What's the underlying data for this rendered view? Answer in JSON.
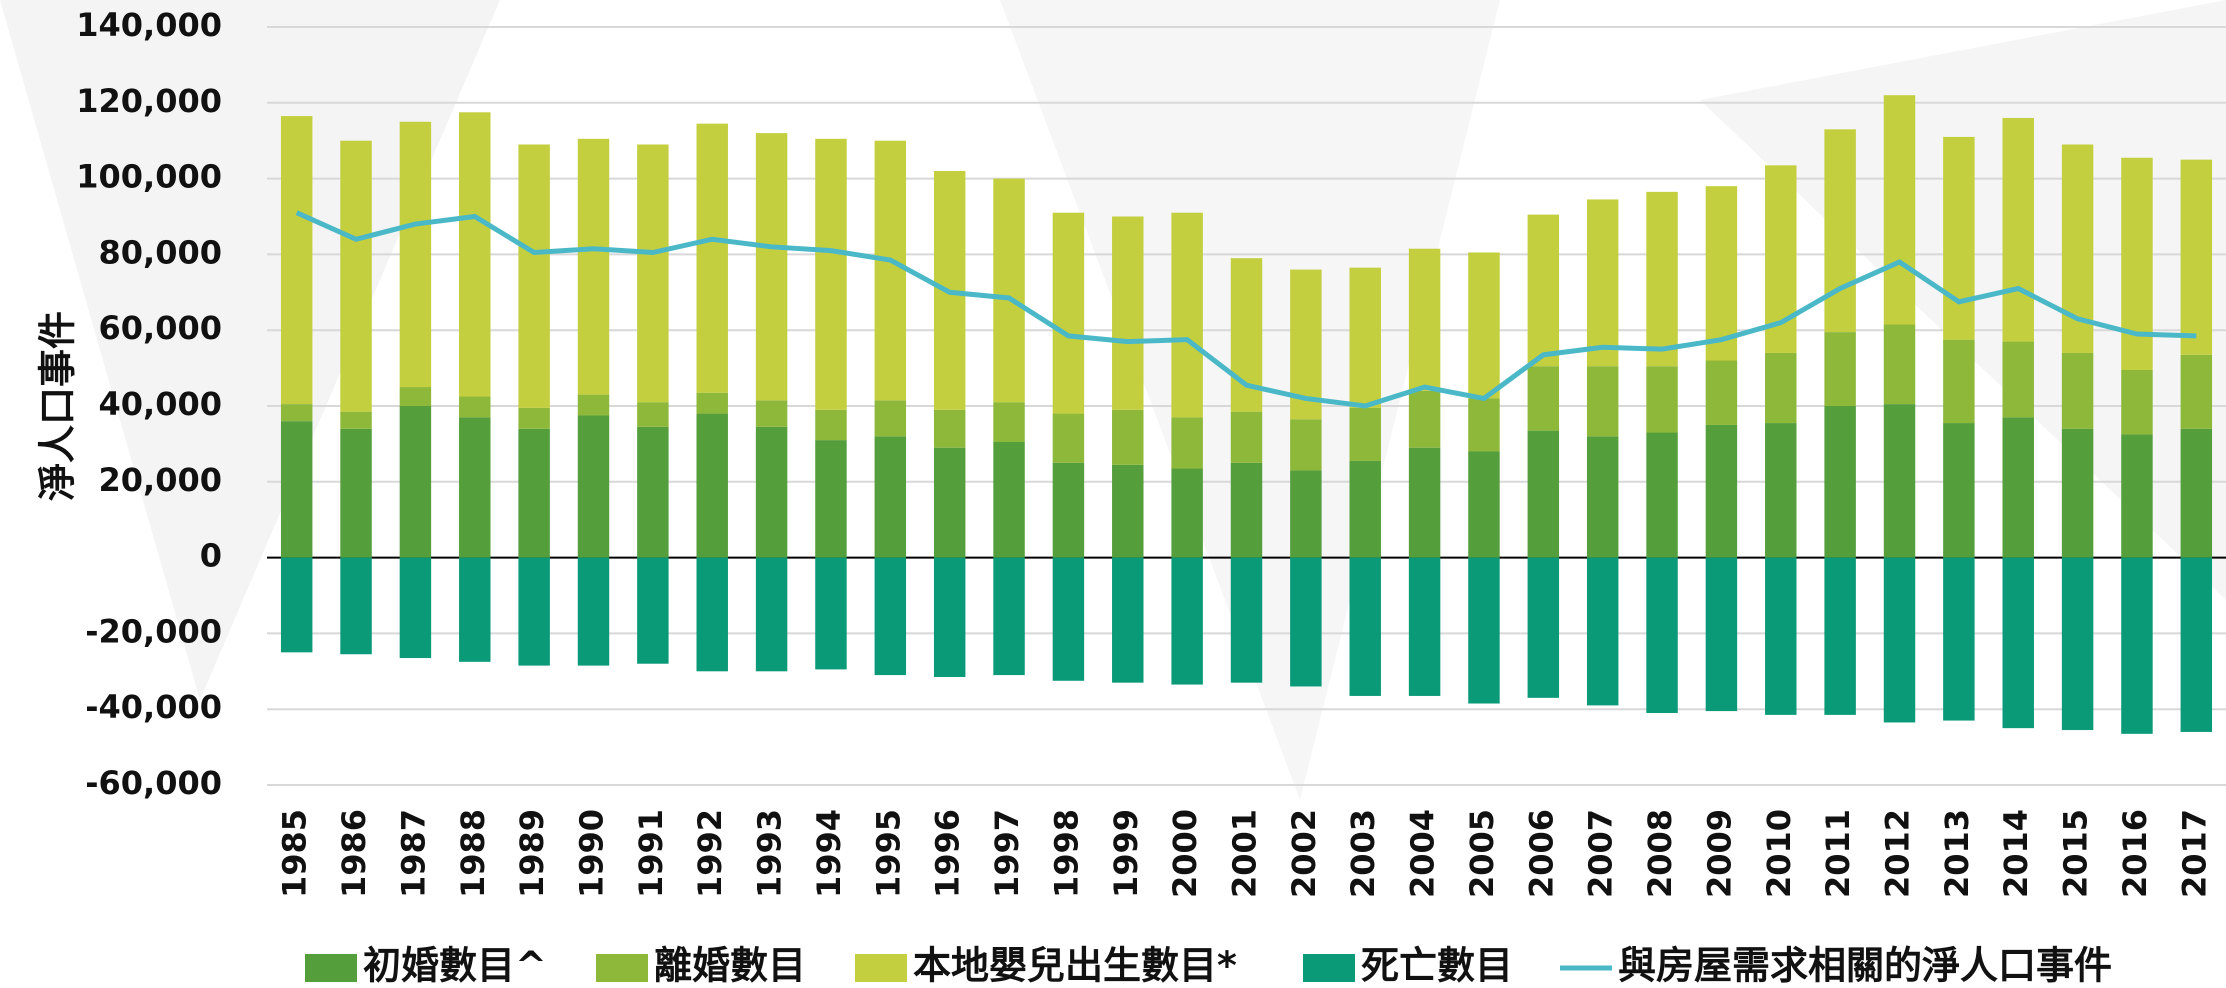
{
  "chart_data": {
    "type": "bar",
    "ylabel": "淨人口事件",
    "categories": [
      "1985",
      "1986",
      "1987",
      "1988",
      "1989",
      "1990",
      "1991",
      "1992",
      "1993",
      "1994",
      "1995",
      "1996",
      "1997",
      "1998",
      "1999",
      "2000",
      "2001",
      "2002",
      "2003",
      "2004",
      "2005",
      "2006",
      "2007",
      "2008",
      "2009",
      "2010",
      "2011",
      "2012",
      "2013",
      "2014",
      "2015",
      "2016",
      "2017"
    ],
    "series": [
      {
        "name": "初婚數目^",
        "color": "#559e3c",
        "values": [
          36000,
          34000,
          40000,
          37000,
          34000,
          37500,
          34500,
          38000,
          34500,
          31000,
          32000,
          29000,
          30500,
          25000,
          24500,
          23500,
          25000,
          23000,
          25500,
          29000,
          28000,
          33500,
          32000,
          33000,
          35000,
          35500,
          40000,
          40500,
          35500,
          37000,
          34000,
          32500,
          34000
        ]
      },
      {
        "name": "離婚數目",
        "color": "#8db83a",
        "values": [
          4500,
          4500,
          5000,
          5500,
          5500,
          5500,
          6500,
          5500,
          7000,
          8000,
          9500,
          10000,
          10500,
          13000,
          14500,
          13500,
          13500,
          13500,
          14000,
          15000,
          14000,
          17000,
          18500,
          17500,
          17000,
          18500,
          19500,
          21000,
          22000,
          20000,
          20000,
          17000,
          19500
        ]
      },
      {
        "name": "本地嬰兒出生數目*",
        "color": "#c3cf3e",
        "values": [
          76000,
          71500,
          70000,
          75000,
          69500,
          67500,
          68000,
          71000,
          70500,
          71500,
          68500,
          63000,
          59000,
          53000,
          51000,
          54000,
          40500,
          39500,
          37000,
          37500,
          38500,
          40000,
          44000,
          46000,
          46000,
          49500,
          53500,
          60500,
          53500,
          59000,
          55000,
          56000,
          51500
        ]
      },
      {
        "name": "死亡數目",
        "color": "#0a9a78",
        "values": [
          -25000,
          -25500,
          -26500,
          -27500,
          -28500,
          -28500,
          -28000,
          -30000,
          -30000,
          -29500,
          -31000,
          -31500,
          -31000,
          -32500,
          -33000,
          -33500,
          -33000,
          -34000,
          -36500,
          -36500,
          -38500,
          -37000,
          -39000,
          -41000,
          -40500,
          -41500,
          -41500,
          -43500,
          -43000,
          -45000,
          -45500,
          -46500,
          -46000
        ]
      },
      {
        "name": "與房屋需求相關的淨人口事件",
        "color": "#4bb8c8",
        "type": "line",
        "values": [
          91000,
          84000,
          88000,
          90000,
          80500,
          81500,
          80500,
          84000,
          82000,
          81000,
          78500,
          70000,
          68500,
          58500,
          57000,
          57500,
          45500,
          42000,
          40000,
          45000,
          42000,
          53500,
          55500,
          55000,
          57500,
          62000,
          71000,
          78000,
          67500,
          71000,
          63000,
          59000,
          58500
        ]
      }
    ],
    "ylim": [
      -60000,
      140000
    ],
    "yticks": [
      {
        "value": -60000,
        "label": "-60,000"
      },
      {
        "value": -40000,
        "label": "-40,000"
      },
      {
        "value": -20000,
        "label": "-20,000"
      },
      0,
      {
        "value": 20000,
        "label": "20,000"
      },
      {
        "value": 40000,
        "label": "40,000"
      },
      {
        "value": 60000,
        "label": "60,000"
      },
      {
        "value": 80000,
        "label": "80,000"
      },
      {
        "value": 100000,
        "label": "100,000"
      },
      {
        "value": 120000,
        "label": "120,000"
      },
      {
        "value": 140000,
        "label": "140,000"
      }
    ],
    "grid": true
  }
}
